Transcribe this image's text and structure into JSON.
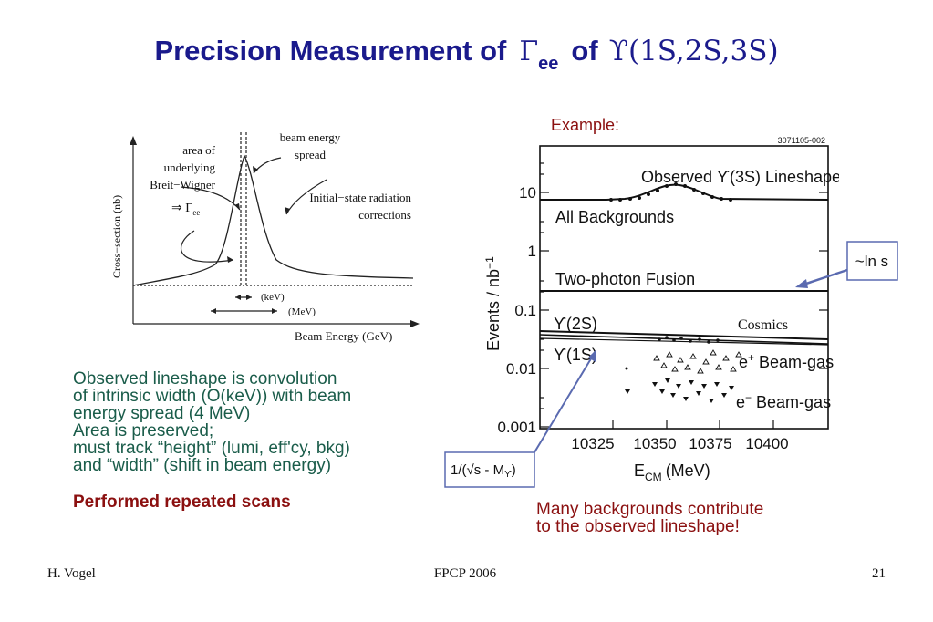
{
  "slide": {
    "title_main": "Precision Measurement of",
    "title_gamma": "Γ",
    "title_ee": "ee",
    "title_of": "of",
    "title_upsilon": "ϒ(1S,2S,3S)",
    "example_label": "Example:",
    "description_lines": [
      "Observed lineshape is convolution",
      "of intrinsic width (O(keV)) with beam",
      "energy spread (4 MeV)",
      "Area is preserved;",
      "must track “height” (lumi, eff'cy, bkg)",
      "and “width” (shift in beam energy)"
    ],
    "highlight": "Performed repeated scans",
    "backgrounds_note_lines": [
      "Many backgrounds contribute",
      "to the observed lineshape!"
    ]
  },
  "left_figure": {
    "ylabel": "Cross−section (nb)",
    "xlabel": "Beam Energy (GeV)",
    "ann_area": [
      "area of",
      "underlying",
      "Breit−Wigner"
    ],
    "ann_gamma": "⇒ Γ",
    "ann_gamma_sub": "ee",
    "ann_spread": [
      "beam energy",
      "spread"
    ],
    "ann_isr": [
      "Initial−state radiation",
      "corrections"
    ],
    "ann_kev": "(keV)",
    "ann_mev": "(MeV)"
  },
  "right_figure": {
    "id": "3071105-002",
    "ylabel": "Events / nb",
    "ylabel_sup": "−1",
    "xlabel": "E",
    "xlabel_sub": "CM",
    "xlabel_unit": "(MeV)",
    "yticks": [
      "10",
      "1",
      "0.1",
      "0.01",
      "0.001"
    ],
    "xticks": [
      "10325",
      "10350",
      "10375",
      "10400"
    ],
    "labels": {
      "observed": "Observed ϒ(3S) Lineshape",
      "all_bkg": "All Backgrounds",
      "two_photon": "Two-photon Fusion",
      "u2s": "ϒ(2S)",
      "cosmics": "Cosmics",
      "u1s": "ϒ(1S)",
      "eplus": "e",
      "eplus_sup": "+",
      "beam_gas1": "Beam-gas",
      "eminus": "e",
      "eminus_sup": "−",
      "beam_gas2": "Beam-gas"
    },
    "box_lns": "~ln s",
    "box_inv": "1/(√s - M",
    "box_inv_sub": "ϒ",
    "box_inv_close": ")"
  },
  "footer": {
    "author": "H. Vogel",
    "conference": "FPCP 2006",
    "page": "21"
  }
}
